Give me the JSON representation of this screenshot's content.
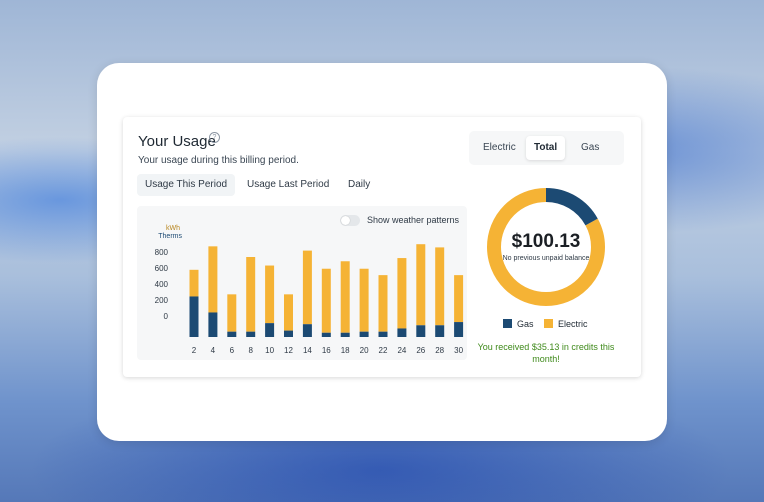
{
  "usage": {
    "title": "Your Usage",
    "help_icon": "question-circle-icon",
    "subtitle": "Your usage during this billing period.",
    "period_tabs": [
      "Usage This Period",
      "Usage Last Period",
      "Daily"
    ],
    "active_period_tab": "Usage This Period",
    "weather_toggle": {
      "label": "Show weather patterns",
      "on": false
    }
  },
  "fuel_tabs": {
    "items": [
      "Electric",
      "Total",
      "Gas"
    ],
    "active": "Total"
  },
  "summary": {
    "amount": "$100.13",
    "note": "No previous unpaid balance",
    "legend": [
      {
        "name": "Gas",
        "color": "#1c4a73"
      },
      {
        "name": "Electric",
        "color": "#f5b335"
      }
    ],
    "gas_share": 0.17,
    "credit_message": "You received $35.13 in credits this month!"
  },
  "chart_data": {
    "type": "bar",
    "stacked": true,
    "axis_labels": {
      "kwh": "kWh",
      "therms": "Therms"
    },
    "yticks": [
      0,
      200,
      400,
      600,
      800
    ],
    "ylim": [
      0,
      900
    ],
    "categories": [
      "2",
      "4",
      "6",
      "8",
      "10",
      "12",
      "14",
      "16",
      "18",
      "20",
      "22",
      "24",
      "26",
      "28",
      "30"
    ],
    "series": [
      {
        "name": "Gas",
        "color": "#1c4a73",
        "values": [
          380,
          230,
          50,
          50,
          130,
          60,
          120,
          40,
          40,
          50,
          50,
          80,
          110,
          110,
          140
        ]
      },
      {
        "name": "Electric",
        "color": "#f5b335",
        "values": [
          250,
          620,
          350,
          700,
          540,
          340,
          690,
          600,
          670,
          590,
          530,
          660,
          760,
          730,
          440
        ]
      }
    ]
  }
}
